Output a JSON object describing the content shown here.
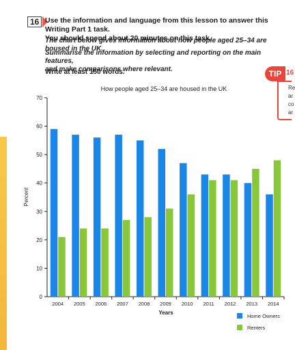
{
  "exercise": {
    "number": "16",
    "task_line1": "Use the information and language from this lesson to answer this Writing Part 1 task.",
    "task_line2": "You should spend about 20 minutes on this task.",
    "description": "The chart below gives information about how people aged 25–34 are housed in the UK.",
    "summary_line1": "Summarise the information by selecting and reporting on the main features,",
    "summary_line2": "and make comparisons where relevant.",
    "word_count": "Write at least 150 words."
  },
  "tip": {
    "label": "TIP",
    "number": "16",
    "fragments": [
      "Re",
      "ar",
      "co",
      "ar"
    ]
  },
  "colors": {
    "home_owners": "#1a86e8",
    "renters": "#88c63a",
    "tip": "#e8463b"
  },
  "chart_data": {
    "type": "bar",
    "title": "How people aged 25–34 are housed in the UK",
    "xlabel": "Years",
    "ylabel": "Percent",
    "ylim": [
      0,
      70
    ],
    "yticks": [
      0,
      10,
      20,
      30,
      40,
      50,
      60,
      70
    ],
    "grid": false,
    "legend_position": "bottom-right",
    "categories": [
      "2004",
      "2005",
      "2006",
      "2007",
      "2008",
      "2009",
      "2010",
      "2011",
      "2012",
      "2013",
      "2014"
    ],
    "series": [
      {
        "name": "Home Owners",
        "values": [
          59,
          57,
          56,
          57,
          55,
          52,
          47,
          43,
          43,
          40,
          36
        ]
      },
      {
        "name": "Renters",
        "values": [
          21,
          24,
          24,
          27,
          28,
          31,
          36,
          41,
          41,
          45,
          48
        ]
      }
    ]
  }
}
